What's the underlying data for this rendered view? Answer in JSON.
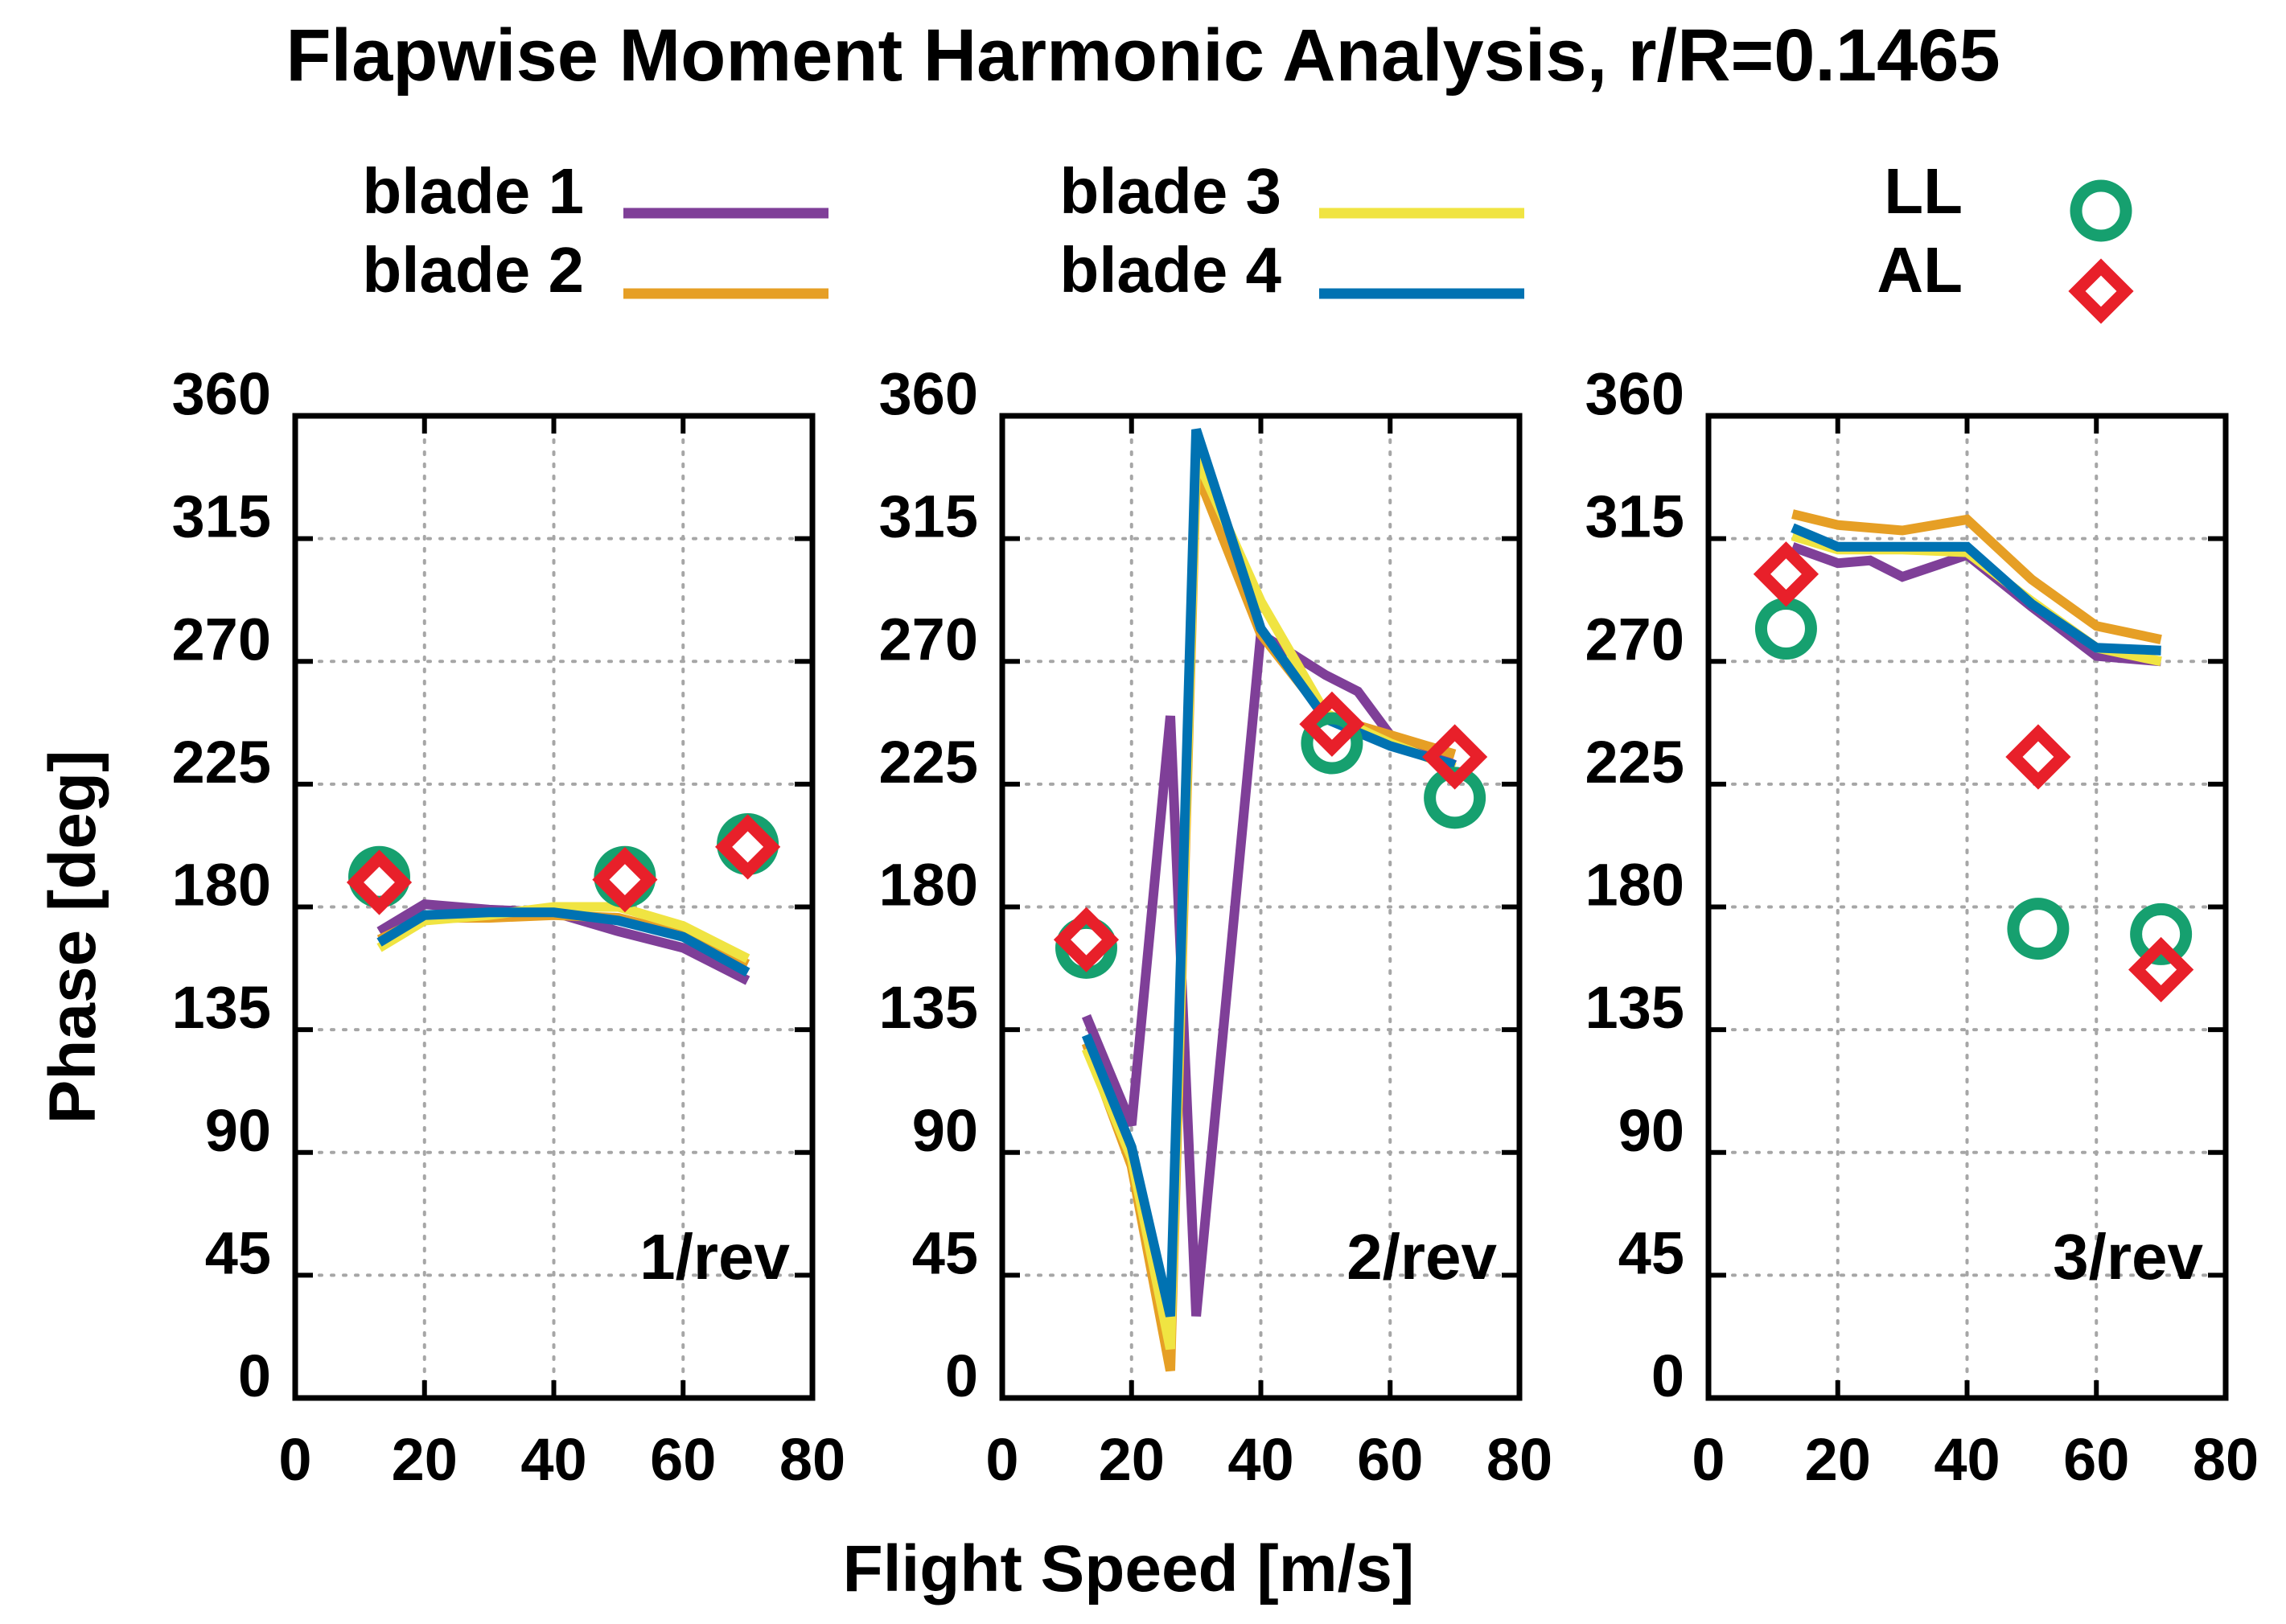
{
  "chart_data": {
    "type": "line",
    "title": "Flapwise Moment Harmonic Analysis, r/R=0.1465",
    "xlabel": "Flight Speed [m/s]",
    "ylabel": "Phase [deg]",
    "xlim": [
      0,
      80
    ],
    "ylim": [
      0,
      360
    ],
    "xticks": [
      "0",
      "20",
      "40",
      "60",
      "80"
    ],
    "yticks": [
      "0",
      "45",
      "90",
      "135",
      "180",
      "225",
      "270",
      "315",
      "360"
    ],
    "grid": true,
    "legend_placement": "top",
    "legend": [
      {
        "label": "blade 1",
        "kind": "line",
        "color": "#7f3f98"
      },
      {
        "label": "blade 2",
        "kind": "line",
        "color": "#e69f25"
      },
      {
        "label": "blade 3",
        "kind": "line",
        "color": "#f0e442"
      },
      {
        "label": "blade 4",
        "kind": "line",
        "color": "#0072b2"
      },
      {
        "label": "LL",
        "kind": "circle",
        "color": "#16a06f"
      },
      {
        "label": "AL",
        "kind": "diamond",
        "color": "#e8202a"
      }
    ],
    "panels": [
      {
        "label": "1/rev",
        "series": [
          {
            "name": "blade 1",
            "x": [
              13,
              20,
              30,
              40,
              50,
              60,
              70
            ],
            "y": [
              171,
              181,
              179,
              178,
              171,
              165,
              153
            ]
          },
          {
            "name": "blade 2",
            "x": [
              13,
              20,
              30,
              40,
              50,
              60,
              70
            ],
            "y": [
              168,
              176,
              176,
              177,
              176,
              170,
              159
            ]
          },
          {
            "name": "blade 3",
            "x": [
              13,
              20,
              30,
              40,
              50,
              60,
              70
            ],
            "y": [
              165,
              175,
              177,
              180,
              180,
              173,
              161
            ]
          },
          {
            "name": "blade 4",
            "x": [
              13,
              20,
              30,
              40,
              50,
              60,
              70
            ],
            "y": [
              167,
              177,
              178,
              178,
              175,
              169,
              156
            ]
          },
          {
            "name": "LL",
            "x": [
              13,
              51,
              70
            ],
            "y": [
              191,
              191,
              203
            ]
          },
          {
            "name": "AL",
            "x": [
              13,
              51,
              70
            ],
            "y": [
              189,
              190,
              202
            ]
          }
        ]
      },
      {
        "label": "2/rev",
        "series": [
          {
            "name": "blade 1",
            "x": [
              13,
              20,
              26,
              30,
              40,
              50,
              55,
              60,
              70
            ],
            "y": [
              140,
              100,
              250,
              30,
              280,
              265,
              259,
              243,
              232
            ]
          },
          {
            "name": "blade 2",
            "x": [
              13,
              20,
              26,
              30,
              40,
              50,
              60,
              70
            ],
            "y": [
              130,
              85,
              10,
              340,
              280,
              250,
              243,
              236
            ]
          },
          {
            "name": "blade 3",
            "x": [
              13,
              20,
              26,
              30,
              40,
              50,
              60,
              70
            ],
            "y": [
              128,
              88,
              18,
              345,
              292,
              251,
              240,
              231
            ]
          },
          {
            "name": "blade 4",
            "x": [
              13,
              20,
              26,
              30,
              40,
              50,
              60,
              70
            ],
            "y": [
              133,
              92,
              30,
              355,
              282,
              249,
              239,
              232
            ]
          },
          {
            "name": "LL",
            "x": [
              13,
              51,
              70
            ],
            "y": [
              165,
              240,
              220
            ]
          },
          {
            "name": "AL",
            "x": [
              13,
              51,
              70
            ],
            "y": [
              168,
              247,
              235
            ]
          }
        ]
      },
      {
        "label": "3/rev",
        "series": [
          {
            "name": "blade 1",
            "x": [
              13,
              20,
              25,
              30,
              40,
              50,
              60,
              70
            ],
            "y": [
              312,
              306,
              307,
              301,
              309,
              290,
              272,
              270
            ]
          },
          {
            "name": "blade 2",
            "x": [
              13,
              20,
              30,
              40,
              50,
              60,
              70
            ],
            "y": [
              324,
              320,
              318,
              322,
              300,
              283,
              278
            ]
          },
          {
            "name": "blade 3",
            "x": [
              13,
              20,
              30,
              40,
              50,
              60,
              70
            ],
            "y": [
              316,
              311,
              311,
              310,
              292,
              275,
              270
            ]
          },
          {
            "name": "blade 4",
            "x": [
              13,
              20,
              30,
              40,
              50,
              60,
              70
            ],
            "y": [
              319,
              312,
              312,
              312,
              291,
              275,
              274
            ]
          },
          {
            "name": "LL",
            "x": [
              12,
              51,
              70
            ],
            "y": [
              282,
              172,
              170
            ]
          },
          {
            "name": "AL",
            "x": [
              12,
              51,
              70
            ],
            "y": [
              302,
              235,
              157
            ]
          }
        ]
      }
    ]
  }
}
